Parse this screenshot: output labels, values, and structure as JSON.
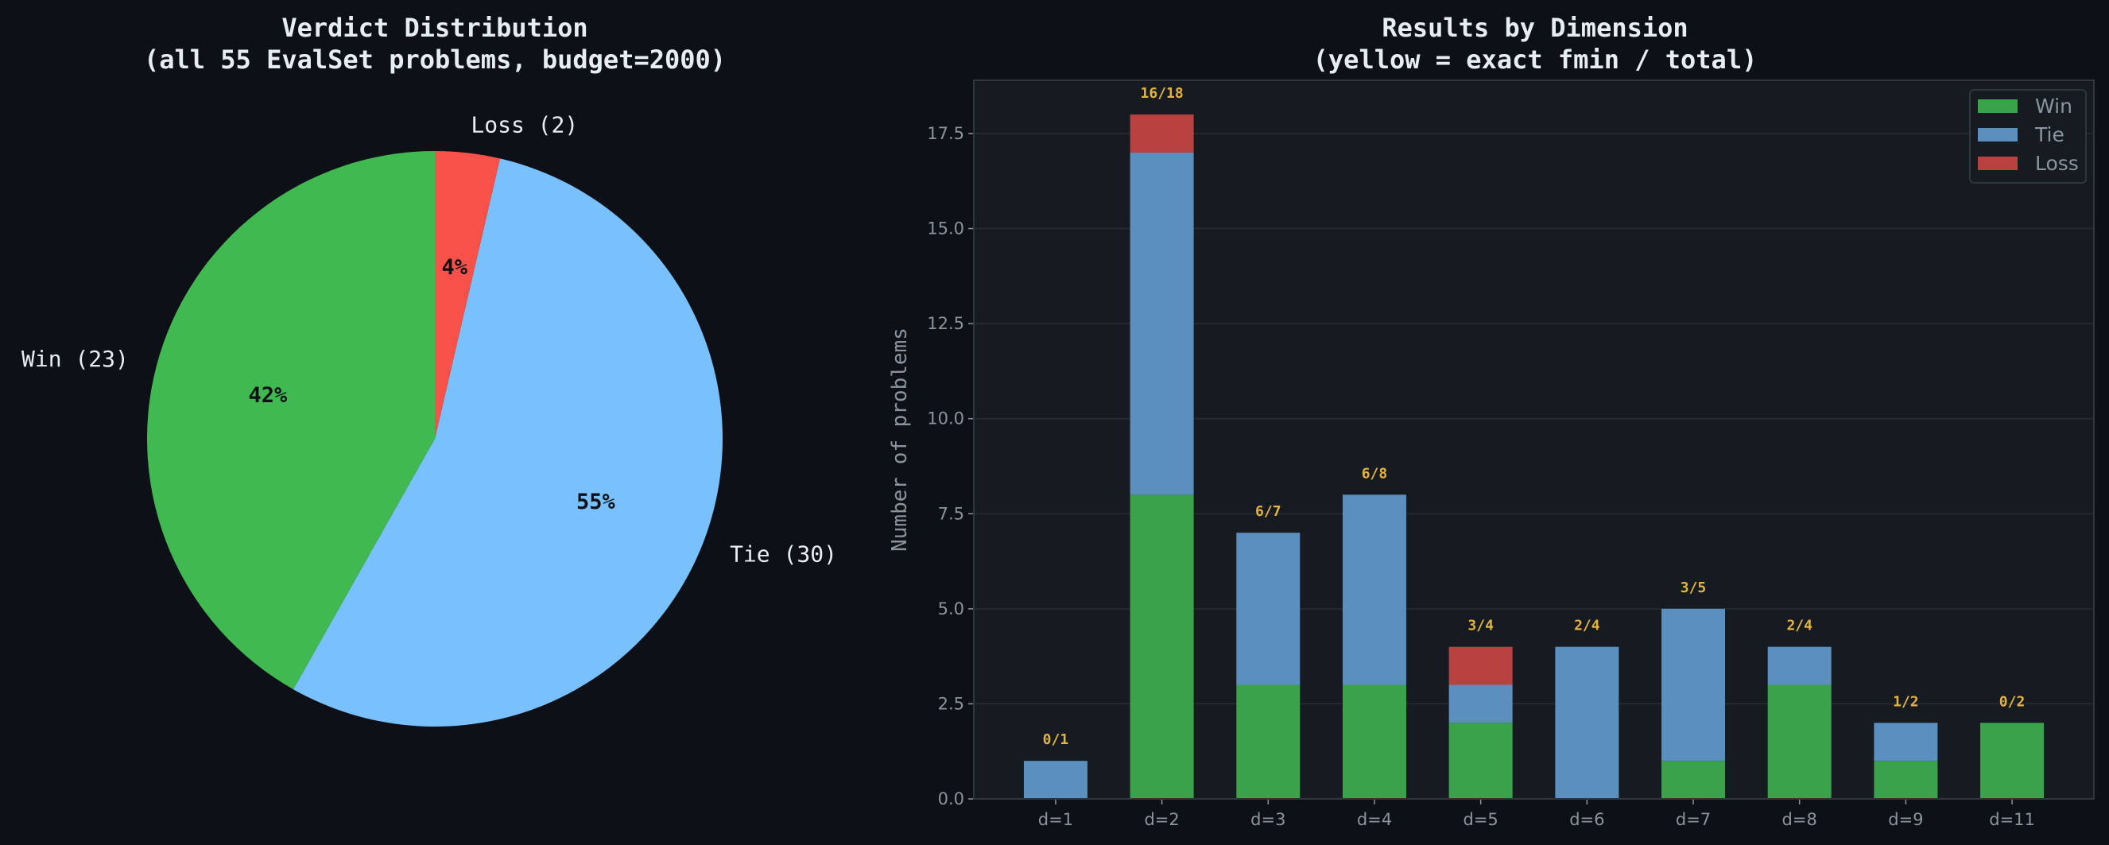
{
  "chart_data": [
    {
      "type": "pie",
      "title": "Verdict Distribution\n(all 55 EvalSet problems, budget=2000)",
      "title_lines": [
        "Verdict Distribution",
        "(all 55 EvalSet problems, budget=2000)"
      ],
      "slices": [
        {
          "label": "Win (23)",
          "value": 23,
          "pct_label": "42%",
          "color": "#3fb950"
        },
        {
          "label": "Tie (30)",
          "value": 30,
          "pct_label": "55%",
          "color": "#79c0ff"
        },
        {
          "label": "Loss (2)",
          "value": 2,
          "pct_label": "4%",
          "color": "#f85149"
        }
      ],
      "start_angle": 90,
      "direction": "counterclockwise"
    },
    {
      "type": "bar",
      "stacked": true,
      "title_lines": [
        "Results by Dimension",
        "(yellow = exact fmin / total)"
      ],
      "xlabel": "",
      "ylabel": "Number of problems",
      "categories": [
        "d=1",
        "d=2",
        "d=3",
        "d=4",
        "d=5",
        "d=6",
        "d=7",
        "d=8",
        "d=9",
        "d=11"
      ],
      "series": [
        {
          "name": "Win",
          "color": "#3aa24a",
          "values": [
            0,
            8,
            3,
            3,
            2,
            0,
            1,
            3,
            1,
            2
          ]
        },
        {
          "name": "Tie",
          "color": "#5b8fbe",
          "values": [
            1,
            9,
            4,
            5,
            1,
            4,
            4,
            1,
            1,
            0
          ]
        },
        {
          "name": "Loss",
          "color": "#b94240",
          "values": [
            0,
            1,
            0,
            0,
            1,
            0,
            0,
            0,
            0,
            0
          ]
        }
      ],
      "annotations": [
        "0/1",
        "16/18",
        "6/7",
        "6/8",
        "3/4",
        "2/4",
        "3/5",
        "2/4",
        "1/2",
        "0/2"
      ],
      "annotation_color": "#e3b341",
      "ylim": [
        0,
        18.9
      ],
      "yticks": [
        "0.0",
        "2.5",
        "5.0",
        "7.5",
        "10.0",
        "12.5",
        "15.0",
        "17.5"
      ],
      "grid": true,
      "legend": "top-right"
    }
  ]
}
